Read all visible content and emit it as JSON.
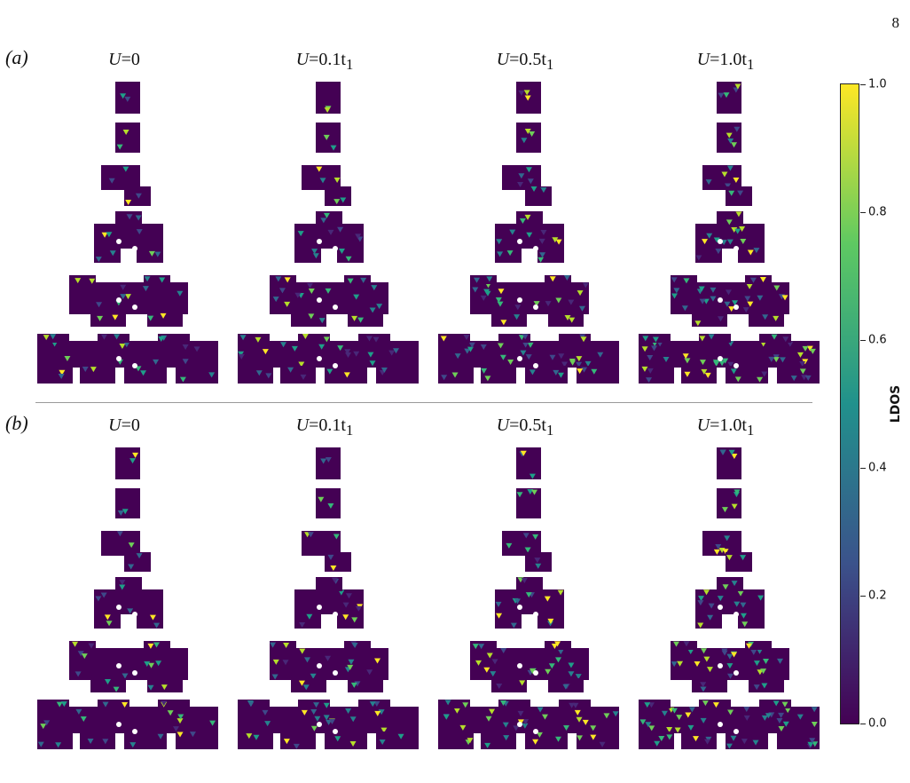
{
  "page_number": "8",
  "panels": [
    {
      "letter": "(a)",
      "columns": [
        {
          "label_var": "U",
          "label_eq": "=0",
          "label_sub": ""
        },
        {
          "label_var": "U",
          "label_eq": "=0.1t",
          "label_sub": "1"
        },
        {
          "label_var": "U",
          "label_eq": "=0.5t",
          "label_sub": "1"
        },
        {
          "label_var": "U",
          "label_eq": "=1.0t",
          "label_sub": "1"
        }
      ]
    },
    {
      "letter": "(b)",
      "columns": [
        {
          "label_var": "U",
          "label_eq": "=0",
          "label_sub": ""
        },
        {
          "label_var": "U",
          "label_eq": "=0.1t",
          "label_sub": "1"
        },
        {
          "label_var": "U",
          "label_eq": "=0.5t",
          "label_sub": "1"
        },
        {
          "label_var": "U",
          "label_eq": "=1.0t",
          "label_sub": "1"
        }
      ]
    }
  ],
  "colorbar": {
    "title": "LDOS",
    "ticks": [
      "0.0",
      "0.2",
      "0.4",
      "0.6",
      "0.8",
      "1.0"
    ],
    "range": [
      0,
      1
    ],
    "colormap": "viridis",
    "colors": [
      "#440154",
      "#3b528b",
      "#21918c",
      "#5ec962",
      "#fde725"
    ]
  },
  "colors": {
    "background": "#440154",
    "divider": "#9a9a9a"
  }
}
